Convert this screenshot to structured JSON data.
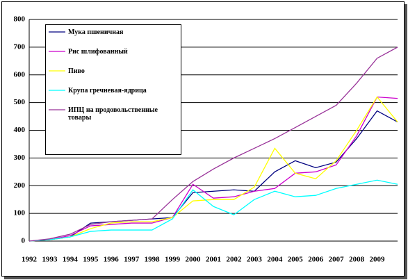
{
  "chart_data": {
    "type": "line",
    "categories": [
      "1992",
      "1993",
      "1994",
      "1995",
      "1996",
      "1997",
      "1998",
      "1999",
      "2000",
      "2001",
      "2002",
      "2003",
      "2004",
      "2005",
      "2006",
      "2007",
      "2008",
      "2009",
      null
    ],
    "series": [
      {
        "name": "Мука пшеничная",
        "color": "#000080",
        "values": [
          0,
          5,
          15,
          65,
          70,
          75,
          80,
          85,
          175,
          180,
          185,
          180,
          250,
          290,
          265,
          285,
          370,
          470,
          430
        ]
      },
      {
        "name": "Рис шлифованный",
        "color": "#cc00cc",
        "values": [
          0,
          5,
          20,
          55,
          60,
          65,
          65,
          85,
          205,
          155,
          160,
          180,
          190,
          245,
          250,
          275,
          380,
          520,
          515
        ]
      },
      {
        "name": "Пиво",
        "color": "#ffff00",
        "values": [
          0,
          5,
          15,
          45,
          65,
          70,
          70,
          85,
          145,
          150,
          150,
          195,
          335,
          245,
          225,
          290,
          400,
          520,
          430
        ]
      },
      {
        "name": "Крупа гречневая-ядрица",
        "color": "#00ffff",
        "values": [
          0,
          5,
          15,
          35,
          40,
          40,
          40,
          80,
          185,
          125,
          95,
          150,
          180,
          160,
          165,
          190,
          205,
          220,
          205
        ]
      },
      {
        "name": "ИПЦ на продовольственные товары",
        "color": "#993399",
        "values": [
          0,
          8,
          25,
          60,
          70,
          75,
          80,
          150,
          215,
          260,
          300,
          335,
          370,
          410,
          450,
          490,
          570,
          660,
          700
        ]
      }
    ],
    "ylim": [
      0,
      800
    ],
    "yticks": [
      0,
      100,
      200,
      300,
      400,
      500,
      600,
      700,
      800
    ],
    "grid": true,
    "legend": "upper left"
  }
}
